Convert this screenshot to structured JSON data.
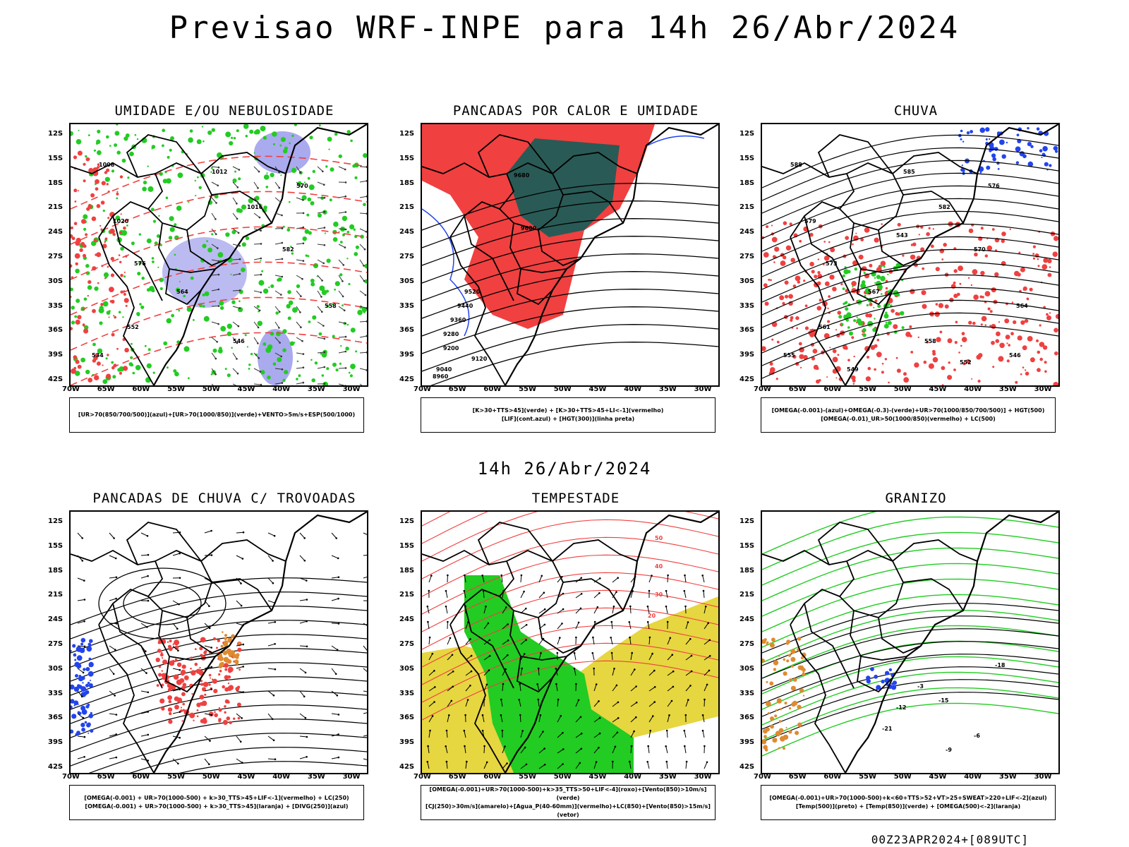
{
  "title": "Previsao WRF-INPE  para 14h 26/Abr/2024",
  "mid_title": "14h 26/Abr/2024",
  "footer": "00Z23APR2024+[089UTC]",
  "lat_labels": [
    "12S",
    "15S",
    "18S",
    "21S",
    "24S",
    "27S",
    "30S",
    "33S",
    "36S",
    "39S",
    "42S"
  ],
  "lon_labels": [
    "70W",
    "65W",
    "60W",
    "55W",
    "50W",
    "45W",
    "40W",
    "35W",
    "30W"
  ],
  "colors": {
    "red": "#f04040",
    "green": "#22cc22",
    "blue": "#2244ee",
    "lavender": "#aaaaee",
    "darkteal": "#2a5a55",
    "yellow": "#e6d640",
    "orange": "#e08a30"
  },
  "panels": [
    {
      "title": "UMIDADE E/OU NEBULOSIDADE",
      "legend": [
        "[UR>70(850/700/500)](azul)+[UR>70(1000/850)](verde)+VENTO>5m/s+ESP(500/1000)"
      ],
      "contour_labels": [
        "1008",
        "1012",
        "1016",
        "1020",
        "570",
        "576",
        "582",
        "564",
        "558",
        "552",
        "546",
        "534"
      ]
    },
    {
      "title": "PANCADAS POR CALOR E UMIDADE",
      "legend": [
        "[K>30+TTS>45](verde) + [K>30+TTS>45+LI<-1](vermelho)",
        "[LIF](cont.azul) + [HGT(300)](linha preta)"
      ],
      "contour_labels": [
        "9680",
        "9600",
        "9520",
        "9440",
        "9360",
        "9280",
        "9200",
        "9120",
        "9040",
        "8960"
      ]
    },
    {
      "title": "CHUVA",
      "legend": [
        "[OMEGA(-0.001)-(azul)+OMEGA(-0.3)-(verde)+UR>70(1000/850/700/500)] + HGT(500)",
        "[OMEGA(-0.01)_UR>50(1000/850)(vermelho) + LC(500)"
      ],
      "contour_labels": [
        "588",
        "585",
        "582",
        "579",
        "576",
        "573",
        "570",
        "567",
        "564",
        "561",
        "558",
        "555",
        "552",
        "549",
        "546",
        "543"
      ]
    },
    {
      "title": "PANCADAS DE CHUVA C/ TROVOADAS",
      "legend": [
        "[OMEGA(-0.001) + UR>70(1000-500) + k>30_TTS>45+LIF<-1](vermelho) + LC(250)",
        "[OMEGA(-0.001) + UR>70(1000-500) + k>30_TTS>45](laranja) + [DIVG(250)](azul)"
      ],
      "contour_labels": []
    },
    {
      "title": "TEMPESTADE",
      "legend": [
        "[OMEGA(-0.001)+UR>70(1000-500)+k>35_TTS>50+LIF<-4](roxo)+[Vento(850)>10m/s](verde)",
        "[CJ(250)>30m/s](amarelo)+[Agua_P(40-60mm)](vermelho)+LC(850)+[Vento(850)>15m/s](vetor)"
      ],
      "contour_labels": [
        "50",
        "40",
        "30",
        "20"
      ]
    },
    {
      "title": "GRANIZO",
      "legend": [
        "[OMEGA(-0.001)+UR>70(1000-500)+k<60+TTS>52+VT>25+SWEAT>220+LIF<-2](azul)",
        "[Temp(500)](preto) + [Temp(850)](verde) + [OMEGA(500)<-2](laranja)"
      ],
      "contour_labels": [
        "-12",
        "-15",
        "-18",
        "-21",
        "-9",
        "-6",
        "-3"
      ]
    }
  ]
}
